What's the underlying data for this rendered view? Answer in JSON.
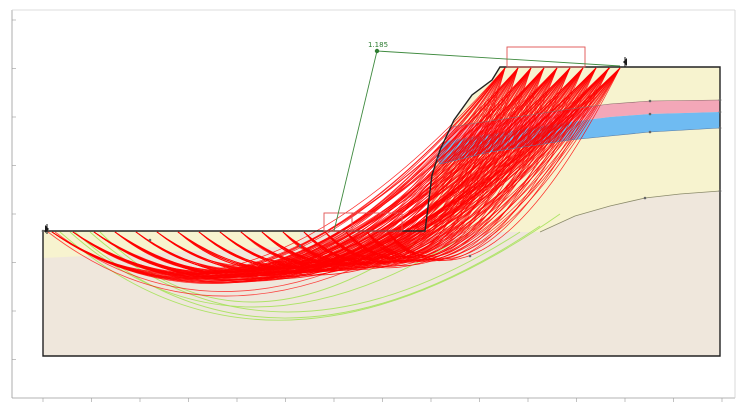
{
  "diagram": {
    "type": "slope-stability-analysis",
    "factor_of_safety_label": "1.185",
    "colors": {
      "slip_surface": "#ff0000",
      "alternate_slip_surface": "#a6e25a",
      "bedrock": "#efe7dc",
      "upper_soil": "#f7f3cf",
      "weak_layer": "#f3a7b8",
      "water_layer": "#6fbbf2",
      "outline": "#222222",
      "grid_link": "#3f8a3f",
      "load_box": "#e05252"
    }
  }
}
